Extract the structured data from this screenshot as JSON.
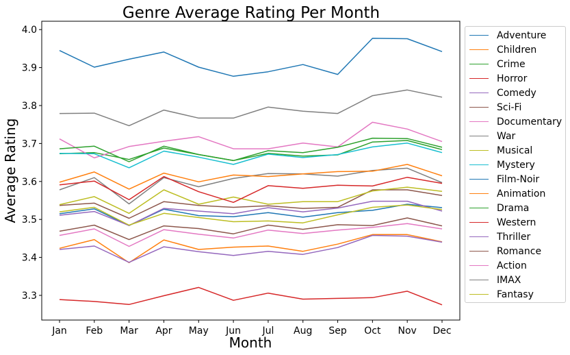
{
  "chart_data": {
    "type": "line",
    "title": "Genre Average Rating Per Month",
    "xlabel": "Month",
    "ylabel": "Average Rating",
    "categories": [
      "Jan",
      "Feb",
      "Mar",
      "Apr",
      "May",
      "Jun",
      "Jul",
      "Aug",
      "Sep",
      "Oct",
      "Nov",
      "Dec"
    ],
    "ylim": [
      3.235,
      4.022
    ],
    "yticks": [
      "3.3",
      "3.4",
      "3.5",
      "3.6",
      "3.7",
      "3.8",
      "3.9",
      "4.0"
    ],
    "grid": false,
    "legend_position": "right",
    "series": [
      {
        "name": "Adventure",
        "color": "#1f77b4",
        "values": [
          3.945,
          3.901,
          3.922,
          3.941,
          3.901,
          3.877,
          3.889,
          3.908,
          3.882,
          3.977,
          3.976,
          3.942
        ]
      },
      {
        "name": "Children",
        "color": "#ff7f0e",
        "values": [
          3.424,
          3.447,
          3.386,
          3.446,
          3.421,
          3.427,
          3.43,
          3.416,
          3.435,
          3.46,
          3.46,
          3.441
        ]
      },
      {
        "name": "Crime",
        "color": "#2ca02c",
        "values": [
          3.673,
          3.676,
          3.658,
          3.688,
          3.671,
          3.655,
          3.674,
          3.667,
          3.67,
          3.704,
          3.708,
          3.684
        ]
      },
      {
        "name": "Horror",
        "color": "#d62728",
        "values": [
          3.289,
          3.284,
          3.276,
          3.299,
          3.321,
          3.287,
          3.306,
          3.29,
          3.292,
          3.294,
          3.311,
          3.275
        ]
      },
      {
        "name": "Comedy",
        "color": "#9467bd",
        "values": [
          3.421,
          3.43,
          3.387,
          3.428,
          3.415,
          3.405,
          3.416,
          3.408,
          3.426,
          3.458,
          3.456,
          3.44
        ]
      },
      {
        "name": "Sci-Fi",
        "color": "#8c564b",
        "values": [
          3.537,
          3.543,
          3.503,
          3.547,
          3.537,
          3.532,
          3.536,
          3.529,
          3.532,
          3.578,
          3.578,
          3.563
        ]
      },
      {
        "name": "Documentary",
        "color": "#e377c2",
        "values": [
          3.712,
          3.662,
          3.692,
          3.706,
          3.718,
          3.686,
          3.686,
          3.701,
          3.691,
          3.756,
          3.738,
          3.705
        ]
      },
      {
        "name": "War",
        "color": "#7f7f7f",
        "values": [
          3.578,
          3.61,
          3.541,
          3.61,
          3.586,
          3.608,
          3.621,
          3.62,
          3.614,
          3.629,
          3.635,
          3.597
        ]
      },
      {
        "name": "Musical",
        "color": "#bcbd22",
        "values": [
          3.539,
          3.56,
          3.516,
          3.578,
          3.54,
          3.559,
          3.54,
          3.547,
          3.547,
          3.575,
          3.585,
          3.574
        ]
      },
      {
        "name": "Mystery",
        "color": "#17becf",
        "values": [
          3.674,
          3.673,
          3.636,
          3.68,
          3.664,
          3.645,
          3.672,
          3.663,
          3.671,
          3.691,
          3.701,
          3.676
        ]
      },
      {
        "name": "Film-Noir",
        "color": "#1f77b4",
        "values": [
          3.515,
          3.528,
          3.484,
          3.527,
          3.51,
          3.507,
          3.518,
          3.506,
          3.518,
          3.524,
          3.54,
          3.531
        ]
      },
      {
        "name": "Animation",
        "color": "#ff7f0e",
        "values": [
          3.598,
          3.625,
          3.58,
          3.622,
          3.599,
          3.617,
          3.613,
          3.62,
          3.626,
          3.627,
          3.645,
          3.615
        ]
      },
      {
        "name": "Drama",
        "color": "#2ca02c",
        "values": [
          3.686,
          3.693,
          3.652,
          3.693,
          3.671,
          3.655,
          3.681,
          3.676,
          3.69,
          3.714,
          3.713,
          3.69
        ]
      },
      {
        "name": "Western",
        "color": "#d62728",
        "values": [
          3.591,
          3.601,
          3.552,
          3.613,
          3.573,
          3.545,
          3.589,
          3.582,
          3.59,
          3.588,
          3.611,
          3.595
        ]
      },
      {
        "name": "Thriller",
        "color": "#9467bd",
        "values": [
          3.511,
          3.521,
          3.484,
          3.529,
          3.522,
          3.515,
          3.531,
          3.52,
          3.53,
          3.548,
          3.548,
          3.522
        ]
      },
      {
        "name": "Romance",
        "color": "#8c564b",
        "values": [
          3.469,
          3.485,
          3.447,
          3.483,
          3.476,
          3.462,
          3.485,
          3.474,
          3.486,
          3.484,
          3.504,
          3.483
        ]
      },
      {
        "name": "Action",
        "color": "#e377c2",
        "values": [
          3.458,
          3.475,
          3.429,
          3.473,
          3.461,
          3.451,
          3.472,
          3.463,
          3.472,
          3.479,
          3.489,
          3.475
        ]
      },
      {
        "name": "IMAX",
        "color": "#7f7f7f",
        "values": [
          3.779,
          3.78,
          3.747,
          3.788,
          3.767,
          3.767,
          3.796,
          3.785,
          3.779,
          3.826,
          3.841,
          3.822
        ]
      },
      {
        "name": "Fantasy",
        "color": "#bcbd22",
        "values": [
          3.52,
          3.532,
          3.485,
          3.516,
          3.505,
          3.494,
          3.496,
          3.491,
          3.512,
          3.532,
          3.538,
          3.526
        ]
      }
    ]
  }
}
